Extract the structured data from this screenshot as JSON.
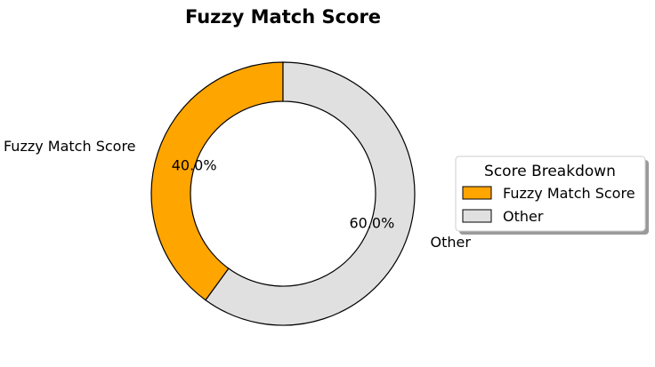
{
  "chart_data": {
    "type": "pie",
    "style": "donut",
    "title": "Fuzzy Match Score",
    "categories": [
      "Fuzzy Match Score",
      "Other"
    ],
    "values": [
      40.0,
      60.0
    ],
    "percent_labels": [
      "40.0%",
      "60.0%"
    ],
    "colors": [
      "#FFA500",
      "#E0E0E0"
    ],
    "edge_color": "#000000",
    "start_angle_deg": 90,
    "direction": "counterclockwise",
    "legend": {
      "title": "Score Breakdown",
      "placement": "right",
      "shadow": true,
      "entries": [
        "Fuzzy Match Score",
        "Other"
      ]
    }
  }
}
